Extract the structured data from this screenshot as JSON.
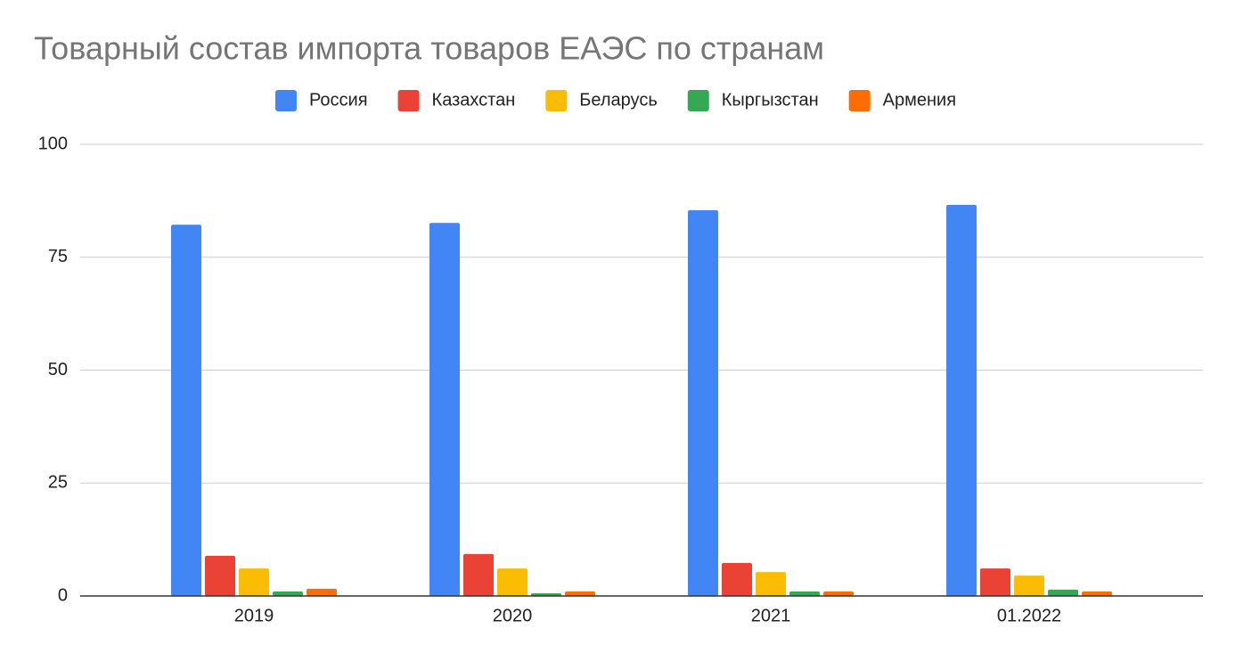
{
  "chart_data": {
    "type": "bar",
    "title": "Товарный состав импорта товаров ЕАЭС по странам",
    "categories": [
      "2019",
      "2020",
      "2021",
      "01.2022"
    ],
    "series": [
      {
        "name": "Россия",
        "color": "#4285f4",
        "values": [
          82.2,
          82.6,
          85.4,
          86.6
        ]
      },
      {
        "name": "Казахстан",
        "color": "#ea4335",
        "values": [
          8.9,
          9.3,
          7.3,
          6.1
        ]
      },
      {
        "name": "Беларусь",
        "color": "#fbbc04",
        "values": [
          6.1,
          6.1,
          5.3,
          4.5
        ]
      },
      {
        "name": "Кыргызстан",
        "color": "#34a853",
        "values": [
          1.0,
          0.6,
          1.0,
          1.4
        ]
      },
      {
        "name": "Армения",
        "color": "#ff6d01",
        "values": [
          1.6,
          1.0,
          1.0,
          1.0
        ]
      }
    ],
    "ylim": [
      0,
      100
    ],
    "yticks": [
      0,
      25,
      50,
      75,
      100
    ],
    "grid": true,
    "legend": "top"
  }
}
